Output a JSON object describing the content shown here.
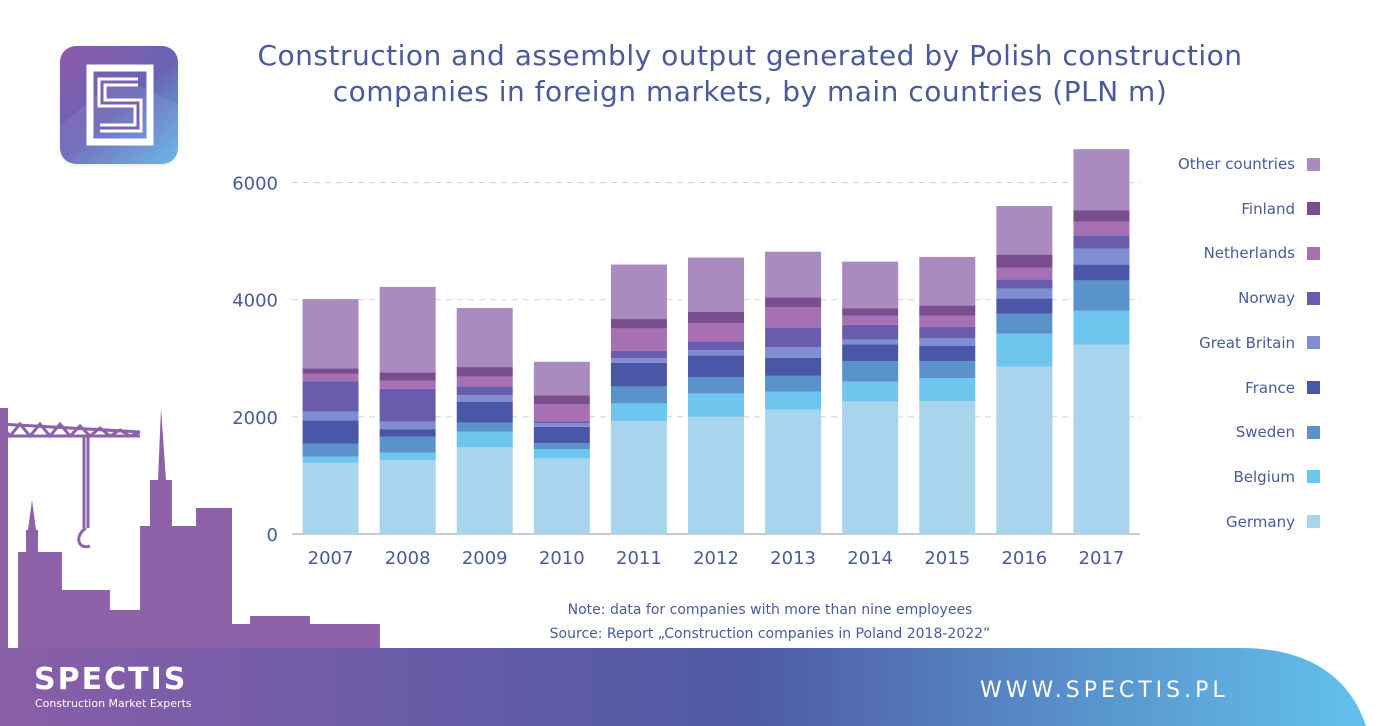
{
  "title": "Construction and assembly output generated by Polish construction companies in foreign markets, by main countries (PLN m)",
  "note": "Note: data for companies with more than nine employees",
  "source": "Source: Report „Construction companies in Poland 2018-2022”",
  "brand": {
    "name": "SPECTIS",
    "tagline": "Construction Market Experts",
    "website": "WWW.SPECTIS.PL",
    "logo_letter": "S"
  },
  "icons": {
    "logo": "spectis-s-logo-icon",
    "skyline": "construction-crane-skyline-icon"
  },
  "colors": {
    "title": "#4a5a9a",
    "footer_start": "#8a5ea8",
    "footer_mid": "#4e5aa6",
    "footer_end": "#62c2ec",
    "skyline": "#8e62a8"
  },
  "chart_data": {
    "type": "bar",
    "stacked": true,
    "categories": [
      "2007",
      "2008",
      "2009",
      "2010",
      "2011",
      "2012",
      "2013",
      "2014",
      "2015",
      "2016",
      "2017"
    ],
    "ylim": [
      0,
      7000
    ],
    "yticks": [
      0,
      2000,
      4000,
      6000
    ],
    "grid": true,
    "legend_position": "right",
    "series": [
      {
        "name": "Germany",
        "color": "#a9d4ee",
        "values": [
          1220,
          1260,
          1480,
          1290,
          1930,
          2000,
          2120,
          2260,
          2270,
          2860,
          3230
        ]
      },
      {
        "name": "Belgium",
        "color": "#6ec6ee",
        "values": [
          100,
          130,
          270,
          160,
          300,
          400,
          310,
          340,
          390,
          560,
          580
        ]
      },
      {
        "name": "Sweden",
        "color": "#5a92cc",
        "values": [
          220,
          270,
          150,
          100,
          290,
          280,
          270,
          350,
          290,
          340,
          520
        ]
      },
      {
        "name": "France",
        "color": "#4a56a8",
        "values": [
          400,
          130,
          360,
          280,
          400,
          370,
          310,
          290,
          260,
          260,
          270
        ]
      },
      {
        "name": "Great Britain",
        "color": "#7e8ed0",
        "values": [
          150,
          130,
          110,
          60,
          80,
          90,
          180,
          80,
          130,
          170,
          270
        ]
      },
      {
        "name": "Norway",
        "color": "#6a5cac",
        "values": [
          520,
          560,
          150,
          30,
          130,
          150,
          340,
          250,
          200,
          160,
          230
        ]
      },
      {
        "name": "Netherlands",
        "color": "#a670b2",
        "values": [
          130,
          140,
          170,
          300,
          380,
          310,
          340,
          160,
          190,
          200,
          230
        ]
      },
      {
        "name": "Finland",
        "color": "#7a4e8e",
        "values": [
          90,
          140,
          160,
          150,
          160,
          190,
          170,
          120,
          170,
          220,
          200
        ]
      },
      {
        "name": "Other countries",
        "color": "#a98bbf",
        "values": [
          1180,
          1460,
          1010,
          570,
          930,
          930,
          780,
          800,
          830,
          830,
          1040
        ]
      }
    ]
  }
}
